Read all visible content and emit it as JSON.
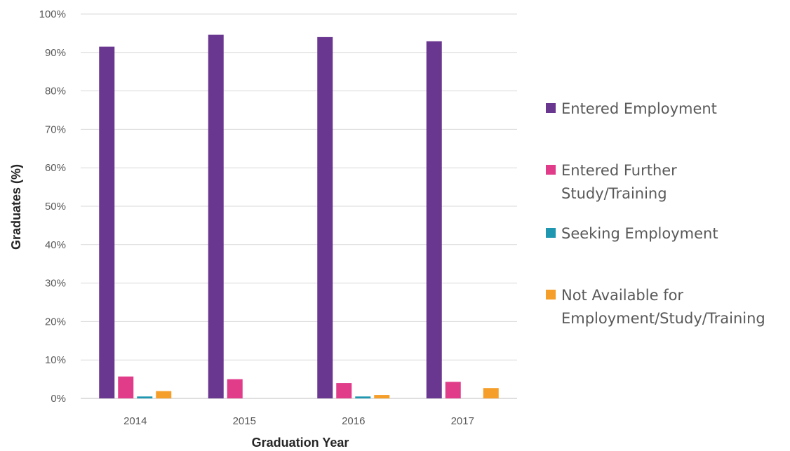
{
  "chart_data": {
    "type": "bar",
    "xlabel": "Graduation Year",
    "ylabel": "Graduates (%)",
    "ylim": [
      0,
      100
    ],
    "yticks": [
      "0%",
      "10%",
      "20%",
      "30%",
      "40%",
      "50%",
      "60%",
      "70%",
      "80%",
      "90%",
      "100%"
    ],
    "categories": [
      "2014",
      "2015",
      "2016",
      "2017"
    ],
    "grid": true,
    "legend_position": "right",
    "series": [
      {
        "name": "Entered Employment",
        "color": "#6a3790",
        "values": [
          91.5,
          94.6,
          94.0,
          92.9
        ]
      },
      {
        "name": "Entered Further Study/Training",
        "color": "#e03c8a",
        "values": [
          5.7,
          5.0,
          4.0,
          4.3
        ]
      },
      {
        "name": "Seeking Employment",
        "color": "#1f97b0",
        "values": [
          0.5,
          0,
          0.5,
          0
        ]
      },
      {
        "name": "Not Available for Employment/Study/Training",
        "color": "#f59f2a",
        "values": [
          1.9,
          0,
          0.9,
          2.7
        ]
      }
    ],
    "legend_lines": [
      [
        "Entered Employment"
      ],
      [
        "Entered Further",
        "Study/Training"
      ],
      [
        "Seeking Employment"
      ],
      [
        "Not Available for",
        "Employment/Study/Training"
      ]
    ]
  }
}
